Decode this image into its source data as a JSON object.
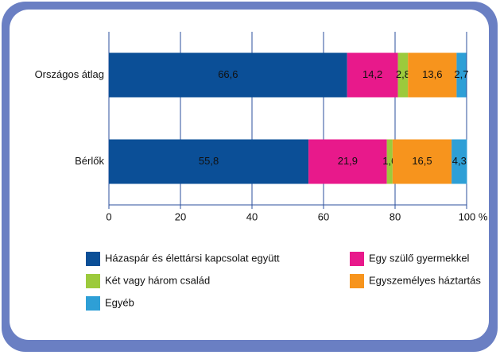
{
  "chart_data": {
    "type": "bar",
    "orientation": "horizontal",
    "stacked": true,
    "categories": [
      "Országos átlag",
      "Bérlők"
    ],
    "series": [
      {
        "name": "Házaspár és élettársi kapcsolat együtt",
        "color": "#0b4f97",
        "values": [
          66.6,
          55.8
        ],
        "value_labels": [
          "66,6",
          "55,8"
        ]
      },
      {
        "name": "Egy szülő gyermekkel",
        "color": "#e8198b",
        "values": [
          14.2,
          21.9
        ],
        "value_labels": [
          "14,2",
          "21,9"
        ]
      },
      {
        "name": "Két vagy három család",
        "color": "#9cca3c",
        "values": [
          2.8,
          1.6
        ],
        "value_labels": [
          "2,8",
          "1,6"
        ]
      },
      {
        "name": "Egyszemélyes háztartás",
        "color": "#f7941d",
        "values": [
          13.6,
          16.5
        ],
        "value_labels": [
          "13,6",
          "16,5"
        ]
      },
      {
        "name": "Egyéb",
        "color": "#2e9fd6",
        "values": [
          2.7,
          4.3
        ],
        "value_labels": [
          "2,7",
          "4,3"
        ]
      }
    ],
    "xlim": [
      0,
      100
    ],
    "xticks": [
      0,
      20,
      40,
      60,
      80,
      {
        "value": 100,
        "label": "100 %"
      }
    ],
    "grid": true,
    "legend": "bottom"
  }
}
